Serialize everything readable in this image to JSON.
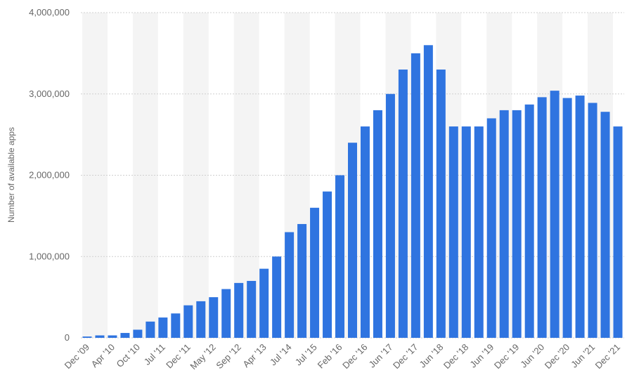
{
  "chart_data": {
    "type": "bar",
    "y_label": "Number of available apps",
    "categories": [
      "Dec '09",
      null,
      "Apr '10",
      null,
      "Oct '10",
      null,
      "Jul '11",
      null,
      "Dec '11",
      null,
      "May '12",
      null,
      "Sep '12",
      null,
      "Apr '13",
      null,
      "Jul '14",
      null,
      "Jul '15",
      null,
      "Feb '16",
      null,
      "Dec '16",
      null,
      "Jun '17",
      null,
      "Dec '17",
      null,
      "Jun '18",
      null,
      "Dec '18",
      null,
      "Jun '19",
      null,
      "Dec '19",
      null,
      "Jun '20",
      null,
      "Dec '20",
      null,
      "Jun '21",
      null,
      "Dec '21"
    ],
    "values": [
      16000,
      30000,
      30000,
      60000,
      100000,
      200000,
      250000,
      300000,
      400000,
      450000,
      500000,
      600000,
      675000,
      700000,
      850000,
      1000000,
      1300000,
      1400000,
      1600000,
      1800000,
      2000000,
      2400000,
      2600000,
      2800000,
      3000000,
      3300000,
      3500000,
      3600000,
      3300000,
      2600000,
      2600000,
      2600000,
      2700000,
      2800000,
      2800000,
      2870000,
      2960000,
      3040000,
      2950000,
      2980000,
      2890000,
      2780000,
      2600000
    ],
    "color": "#2f74e0",
    "ylim": [
      0,
      4000000
    ],
    "yticks": [
      0,
      {
        "value": 1000000,
        "label": "1,000,000"
      },
      {
        "value": 2000000,
        "label": "2,000,000"
      },
      {
        "value": 3000000,
        "label": "3,000,000"
      },
      {
        "value": 4000000,
        "label": "4,000,000"
      }
    ],
    "grid": true
  }
}
